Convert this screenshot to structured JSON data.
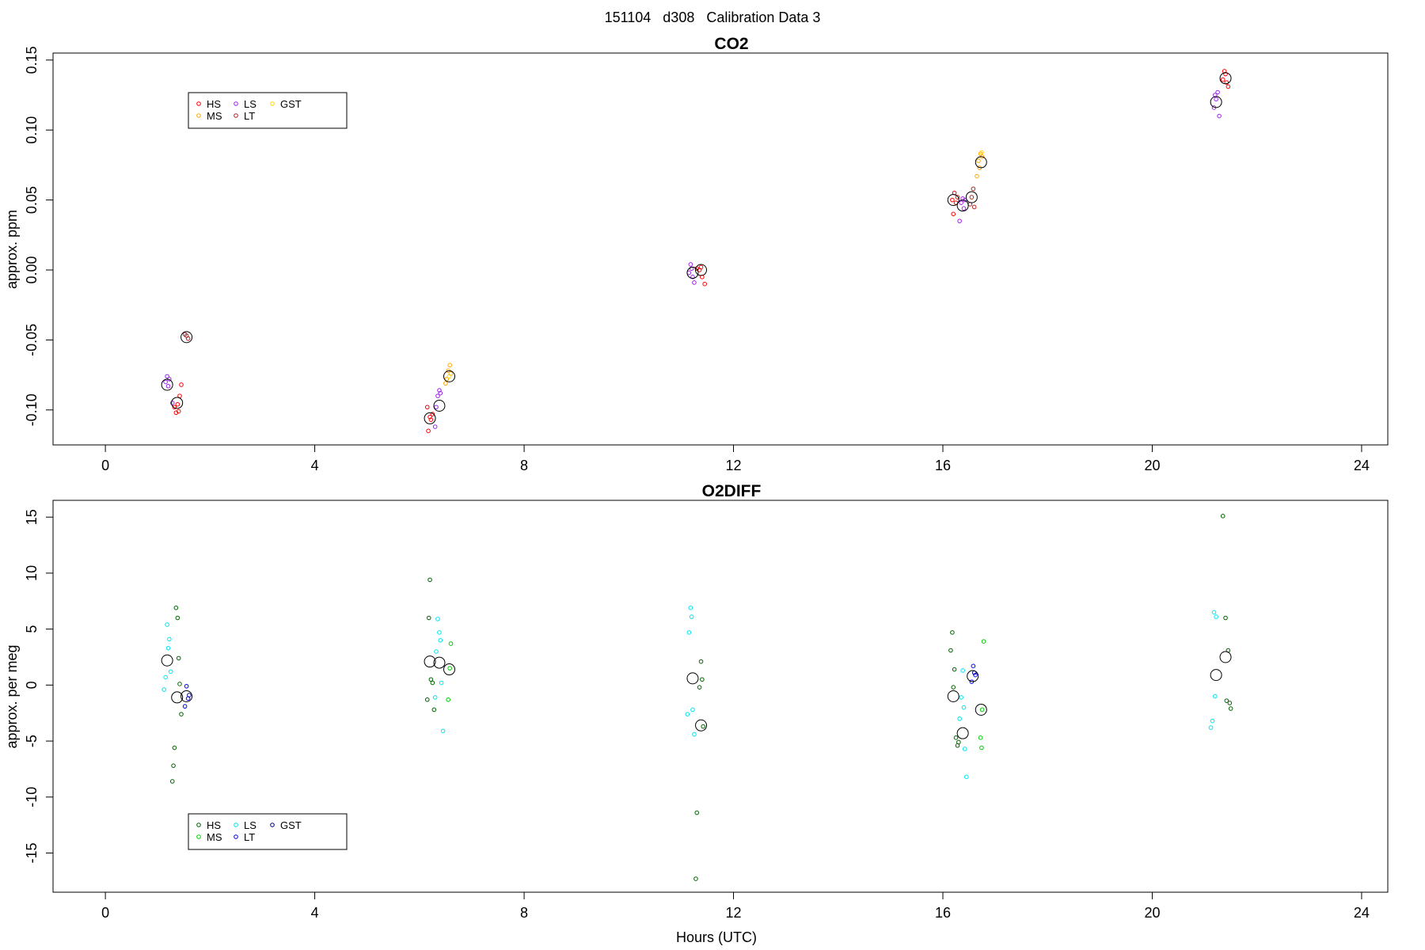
{
  "figure": {
    "suptitle": "151104   d308   Calibration Data 3",
    "xlabel": "Hours (UTC)"
  },
  "chart_data": [
    {
      "type": "scatter",
      "title": "CO2",
      "ylabel": "approx. ppm",
      "xlabel": "",
      "xlim": [
        -1.0,
        24.5
      ],
      "ylim": [
        -0.125,
        0.155
      ],
      "xticks": [
        0,
        4,
        8,
        12,
        16,
        20,
        24
      ],
      "xtick_labels": [
        "0",
        "4",
        "8",
        "12",
        "16",
        "20",
        "24"
      ],
      "yticks": [
        -0.1,
        -0.05,
        0.0,
        0.05,
        0.1,
        0.15
      ],
      "ytick_labels": [
        "-0.10",
        "-0.05",
        "0.00",
        "0.05",
        "0.10",
        "0.15"
      ],
      "grid": false,
      "legend": {
        "placement": "top-left",
        "columns": [
          [
            {
              "label": "HS",
              "color": "#ff0000"
            },
            {
              "label": "MS",
              "color": "#ffa500"
            }
          ],
          [
            {
              "label": "LS",
              "color": "#a020f0"
            },
            {
              "label": "LT",
              "color": "#b22222"
            }
          ],
          [
            {
              "label": "GST",
              "color": "#ffd700"
            }
          ]
        ]
      },
      "series": [
        {
          "name": "HS",
          "color": "#ff0000",
          "points": [
            [
              1.35,
              -0.102
            ],
            [
              1.38,
              -0.096
            ],
            [
              1.32,
              -0.098
            ],
            [
              1.4,
              -0.101
            ],
            [
              1.42,
              -0.09
            ],
            [
              1.45,
              -0.082
            ],
            [
              6.17,
              -0.115
            ],
            [
              6.2,
              -0.105
            ],
            [
              6.15,
              -0.098
            ],
            [
              6.25,
              -0.103
            ],
            [
              6.22,
              -0.107
            ],
            [
              11.35,
              0.0
            ],
            [
              11.38,
              0.002
            ],
            [
              11.4,
              -0.005
            ],
            [
              11.45,
              -0.01
            ],
            [
              11.3,
              0.001
            ],
            [
              16.18,
              0.05
            ],
            [
              16.22,
              0.055
            ],
            [
              16.2,
              0.04
            ],
            [
              16.25,
              0.048
            ],
            [
              16.28,
              0.052
            ],
            [
              21.35,
              0.136
            ],
            [
              21.4,
              0.14
            ],
            [
              21.45,
              0.131
            ],
            [
              21.38,
              0.142
            ],
            [
              21.42,
              0.134
            ]
          ]
        },
        {
          "name": "MS",
          "color": "#ffa500",
          "points": [
            [
              6.55,
              -0.072
            ],
            [
              6.58,
              -0.068
            ],
            [
              6.6,
              -0.074
            ],
            [
              6.52,
              -0.078
            ],
            [
              6.5,
              -0.081
            ],
            [
              16.68,
              0.078
            ],
            [
              16.72,
              0.083
            ],
            [
              16.75,
              0.081
            ],
            [
              16.7,
              0.073
            ],
            [
              16.65,
              0.067
            ]
          ]
        },
        {
          "name": "LS",
          "color": "#a020f0",
          "points": [
            [
              1.15,
              -0.08
            ],
            [
              1.18,
              -0.076
            ],
            [
              1.2,
              -0.083
            ],
            [
              1.22,
              -0.078
            ],
            [
              1.28,
              -0.095
            ],
            [
              6.32,
              -0.098
            ],
            [
              6.35,
              -0.09
            ],
            [
              6.38,
              -0.086
            ],
            [
              6.3,
              -0.112
            ],
            [
              6.4,
              -0.088
            ],
            [
              11.18,
              0.004
            ],
            [
              11.22,
              -0.005
            ],
            [
              11.25,
              -0.009
            ],
            [
              11.2,
              0.001
            ],
            [
              11.15,
              -0.002
            ],
            [
              16.35,
              0.048
            ],
            [
              16.38,
              0.051
            ],
            [
              16.4,
              0.044
            ],
            [
              16.32,
              0.035
            ],
            [
              16.42,
              0.05
            ],
            [
              21.18,
              0.116
            ],
            [
              21.22,
              0.122
            ],
            [
              21.25,
              0.127
            ],
            [
              21.28,
              0.11
            ],
            [
              21.2,
              0.125
            ]
          ]
        },
        {
          "name": "LT",
          "color": "#b22222",
          "points": [
            [
              1.55,
              -0.047
            ],
            [
              1.58,
              -0.049
            ],
            [
              1.52,
              -0.046
            ],
            [
              16.55,
              0.052
            ],
            [
              16.58,
              0.058
            ],
            [
              16.52,
              0.047
            ],
            [
              16.6,
              0.045
            ]
          ]
        },
        {
          "name": "GST",
          "color": "#ffd700",
          "points": [
            [
              6.57,
              -0.076
            ],
            [
              16.74,
              0.084
            ]
          ]
        },
        {
          "name": "",
          "color": "#000000",
          "role": "mean",
          "points": [
            [
              1.18,
              -0.082
            ],
            [
              1.37,
              -0.095
            ],
            [
              1.55,
              -0.048
            ],
            [
              6.2,
              -0.106
            ],
            [
              6.38,
              -0.097
            ],
            [
              6.57,
              -0.076
            ],
            [
              11.22,
              -0.002
            ],
            [
              11.38,
              0.0
            ],
            [
              16.2,
              0.05
            ],
            [
              16.38,
              0.046
            ],
            [
              16.55,
              0.052
            ],
            [
              16.73,
              0.077
            ],
            [
              21.22,
              0.12
            ],
            [
              21.4,
              0.137
            ]
          ]
        }
      ]
    },
    {
      "type": "scatter",
      "title": "O2DIFF",
      "ylabel": "approx. per meg",
      "xlabel": "Hours (UTC)",
      "xlim": [
        -1.0,
        24.5
      ],
      "ylim": [
        -18.5,
        16.5
      ],
      "xticks": [
        0,
        4,
        8,
        12,
        16,
        20,
        24
      ],
      "xtick_labels": [
        "0",
        "4",
        "8",
        "12",
        "16",
        "20",
        "24"
      ],
      "yticks": [
        -15,
        -10,
        -5,
        0,
        5,
        10,
        15
      ],
      "ytick_labels": [
        "-15",
        "-10",
        "-5",
        "0",
        "5",
        "10",
        "15"
      ],
      "grid": false,
      "legend": {
        "placement": "bottom-left",
        "columns": [
          [
            {
              "label": "HS",
              "color": "#006400"
            },
            {
              "label": "MS",
              "color": "#00cc00"
            }
          ],
          [
            {
              "label": "LS",
              "color": "#00e5ee"
            },
            {
              "label": "LT",
              "color": "#0000ff"
            }
          ],
          [
            {
              "label": "GST",
              "color": "#00008b"
            }
          ]
        ]
      },
      "series": [
        {
          "name": "HS",
          "color": "#006400",
          "points": [
            [
              1.35,
              6.9
            ],
            [
              1.38,
              6.0
            ],
            [
              1.4,
              2.4
            ],
            [
              1.42,
              0.1
            ],
            [
              1.45,
              -2.6
            ],
            [
              1.32,
              -5.6
            ],
            [
              1.3,
              -7.2
            ],
            [
              1.28,
              -8.6
            ],
            [
              6.2,
              9.4
            ],
            [
              6.18,
              6.0
            ],
            [
              6.22,
              0.5
            ],
            [
              6.25,
              0.2
            ],
            [
              6.28,
              -2.2
            ],
            [
              6.15,
              -1.3
            ],
            [
              11.38,
              2.1
            ],
            [
              11.4,
              0.5
            ],
            [
              11.35,
              -0.2
            ],
            [
              11.42,
              -3.7
            ],
            [
              11.3,
              -11.4
            ],
            [
              11.28,
              -17.3
            ],
            [
              16.18,
              4.7
            ],
            [
              16.15,
              3.1
            ],
            [
              16.22,
              1.4
            ],
            [
              16.2,
              -0.2
            ],
            [
              16.25,
              -4.7
            ],
            [
              16.28,
              -5.4
            ],
            [
              16.3,
              -5.1
            ],
            [
              21.35,
              15.1
            ],
            [
              21.4,
              6.0
            ],
            [
              21.45,
              3.1
            ],
            [
              21.48,
              -1.6
            ],
            [
              21.5,
              -2.1
            ],
            [
              21.42,
              -1.4
            ]
          ]
        },
        {
          "name": "MS",
          "color": "#00cc00",
          "points": [
            [
              6.6,
              3.7
            ],
            [
              6.58,
              1.5
            ],
            [
              6.55,
              -1.3
            ],
            [
              16.78,
              3.9
            ],
            [
              16.75,
              -2.2
            ],
            [
              16.72,
              -4.7
            ],
            [
              16.74,
              -5.6
            ]
          ]
        },
        {
          "name": "LS",
          "color": "#00e5ee",
          "points": [
            [
              1.18,
              5.4
            ],
            [
              1.22,
              4.1
            ],
            [
              1.2,
              3.3
            ],
            [
              1.15,
              0.7
            ],
            [
              1.12,
              -0.4
            ],
            [
              1.25,
              1.2
            ],
            [
              6.35,
              5.9
            ],
            [
              6.38,
              4.7
            ],
            [
              6.4,
              4.0
            ],
            [
              6.32,
              3.0
            ],
            [
              6.42,
              0.2
            ],
            [
              6.3,
              -1.1
            ],
            [
              6.45,
              -4.1
            ],
            [
              11.18,
              6.9
            ],
            [
              11.2,
              6.1
            ],
            [
              11.15,
              4.7
            ],
            [
              11.22,
              -2.2
            ],
            [
              11.12,
              -2.6
            ],
            [
              11.25,
              -4.4
            ],
            [
              16.38,
              1.3
            ],
            [
              16.35,
              -1.1
            ],
            [
              16.4,
              -2.0
            ],
            [
              16.32,
              -3.0
            ],
            [
              16.42,
              -5.7
            ],
            [
              16.45,
              -8.2
            ],
            [
              21.18,
              6.5
            ],
            [
              21.22,
              6.1
            ],
            [
              21.2,
              -1.0
            ],
            [
              21.15,
              -3.2
            ],
            [
              21.12,
              -3.8
            ]
          ]
        },
        {
          "name": "LT",
          "color": "#0000ff",
          "points": [
            [
              1.55,
              -0.1
            ],
            [
              1.58,
              -1.2
            ],
            [
              1.52,
              -1.9
            ],
            [
              16.58,
              1.7
            ],
            [
              16.62,
              0.9
            ],
            [
              16.55,
              0.3
            ]
          ]
        },
        {
          "name": "GST",
          "color": "#00008b",
          "points": [
            [
              1.6,
              -0.9
            ],
            [
              16.6,
              1.1
            ]
          ]
        },
        {
          "name": "",
          "color": "#000000",
          "role": "mean",
          "points": [
            [
              1.18,
              2.2
            ],
            [
              1.37,
              -1.1
            ],
            [
              1.55,
              -1.0
            ],
            [
              6.2,
              2.1
            ],
            [
              6.38,
              2.0
            ],
            [
              6.57,
              1.4
            ],
            [
              11.22,
              0.6
            ],
            [
              11.38,
              -3.6
            ],
            [
              16.2,
              -1.0
            ],
            [
              16.38,
              -4.3
            ],
            [
              16.57,
              0.8
            ],
            [
              16.73,
              -2.2
            ],
            [
              21.22,
              0.9
            ],
            [
              21.4,
              2.5
            ]
          ]
        }
      ]
    }
  ]
}
